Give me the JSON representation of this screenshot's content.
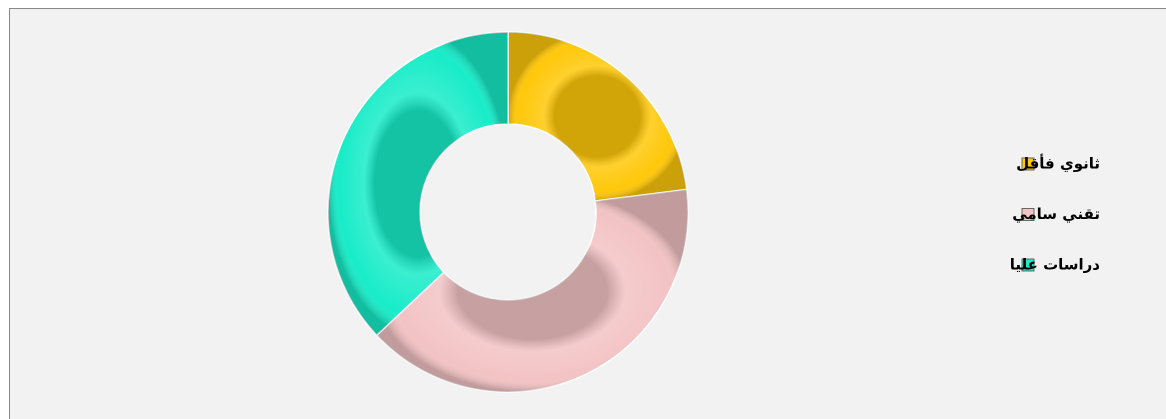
{
  "chart_data": {
    "type": "donut",
    "categories": [
      "ثانوي فأقل",
      "تقني سامي",
      "دراسات عليا"
    ],
    "values": [
      23,
      40,
      37
    ],
    "colors": [
      "#ffc80a",
      "#f3c3c4",
      "#18ecc8"
    ],
    "legend": "right"
  }
}
